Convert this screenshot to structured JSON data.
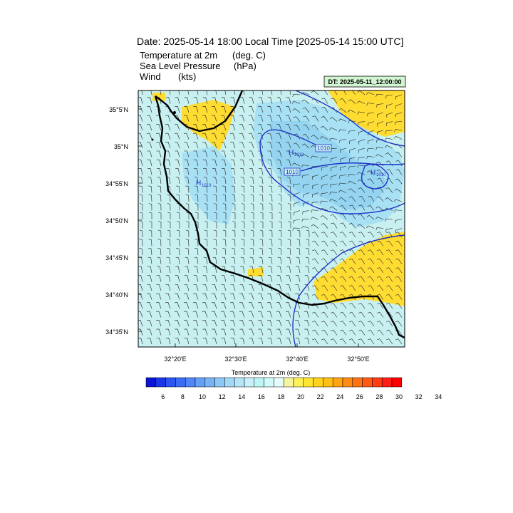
{
  "title": "Date: 2025-05-14  18:00 Local Time [2025-05-14  15:00 UTC]",
  "fields": [
    {
      "name": "Temperature at 2m",
      "unit": "(deg. C)"
    },
    {
      "name": "Sea Level Pressure",
      "unit": "(hPa)"
    },
    {
      "name": "Wind",
      "unit": "(kts)"
    }
  ],
  "dt_label": "DT: 2025-05-11_12:00:00",
  "lat_ticks": [
    "35°5'N",
    "35°N",
    "34°55'N",
    "34°50'N",
    "34°45'N",
    "34°40'N",
    "34°35'N"
  ],
  "lon_ticks": [
    "32°20'E",
    "32°30'E",
    "32°40'E",
    "32°50'E"
  ],
  "pressure_labels": [
    "1010",
    "1010"
  ],
  "high_labels": [
    {
      "letter": "H",
      "value": "1010"
    },
    {
      "letter": "H",
      "value": "1010"
    },
    {
      "letter": "H",
      "value": "1010"
    }
  ],
  "colorbar": {
    "title": "Temperature at 2m  (deg. C)",
    "tick_labels": [
      "6",
      "8",
      "10",
      "12",
      "14",
      "16",
      "18",
      "20",
      "22",
      "24",
      "26",
      "28",
      "30",
      "32",
      "34"
    ],
    "colors": [
      "#0a14d2",
      "#1e37e6",
      "#2d55f0",
      "#3c6ef5",
      "#5087f5",
      "#64a0f5",
      "#78b4f5",
      "#8cc8f5",
      "#a0d8f5",
      "#b4e6f8",
      "#c8f0fa",
      "#bef5f5",
      "#d2fafa",
      "#e6fcfc",
      "#f5f5a0",
      "#fff05a",
      "#ffe632",
      "#ffd21e",
      "#ffbe14",
      "#ffa514",
      "#ff8c14",
      "#ff7314",
      "#ff5a14",
      "#ff3c14",
      "#ff1e14",
      "#ff0000"
    ]
  },
  "colors": {
    "ocean_fill": "#c8f0f0",
    "cool_fill": "#9ad8f2",
    "warm_fill": "#ffdc32",
    "isobar": "#1e32c8",
    "coast": "#000000"
  }
}
